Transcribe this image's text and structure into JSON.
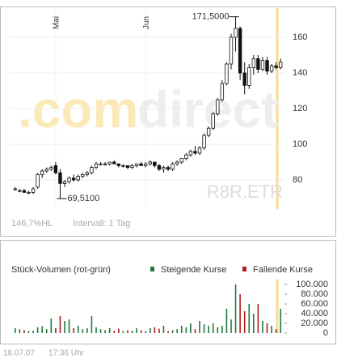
{
  "chart_data": [
    {
      "type": "candlestick",
      "categories": [
        null,
        null,
        null,
        null,
        null,
        null,
        null,
        null,
        null,
        "Mai",
        null,
        null,
        null,
        null,
        null,
        null,
        null,
        null,
        null,
        null,
        null,
        null,
        null,
        null,
        null,
        null,
        null,
        null,
        null,
        "Jun",
        null,
        null,
        null,
        null,
        null,
        null,
        null,
        null,
        null,
        null,
        null,
        null,
        null,
        null,
        null,
        null,
        null,
        null,
        null,
        null,
        null,
        null,
        null,
        null,
        null,
        null,
        null,
        null,
        null,
        null
      ],
      "open": [
        75,
        74,
        74,
        73,
        73,
        76,
        83,
        85,
        86,
        88,
        84,
        78,
        79,
        81,
        80,
        82,
        83,
        84,
        87,
        89,
        89,
        89,
        90,
        89,
        88,
        88,
        87,
        88,
        89,
        88,
        89,
        90,
        88,
        86,
        87,
        86,
        89,
        90,
        92,
        94,
        96,
        95,
        98,
        105,
        109,
        117,
        125,
        134,
        145,
        160,
        165,
        140,
        133,
        143,
        148,
        142,
        147,
        141,
        144,
        143
      ],
      "high": [
        76,
        75,
        75,
        74,
        76,
        84,
        86,
        87,
        88,
        90,
        86,
        80,
        82,
        83,
        83,
        84,
        85,
        88,
        90,
        90,
        90,
        90,
        91,
        89,
        89,
        88,
        89,
        89,
        90,
        90,
        91,
        90,
        89,
        88,
        88,
        90,
        91,
        92,
        95,
        97,
        99,
        99,
        106,
        110,
        118,
        126,
        136,
        146,
        162,
        171.5,
        166,
        146,
        145,
        150,
        150,
        149,
        149,
        145,
        146,
        148
      ],
      "low": [
        74,
        73,
        73,
        72,
        72,
        75,
        81,
        84,
        85,
        83,
        69.51,
        76,
        78,
        79,
        79,
        81,
        82,
        83,
        86,
        88,
        88,
        88,
        89,
        87,
        87,
        86,
        86,
        87,
        88,
        87,
        88,
        87,
        85,
        84,
        85,
        85,
        88,
        89,
        91,
        93,
        94,
        94,
        97,
        104,
        108,
        116,
        124,
        133,
        142,
        152,
        136,
        128,
        131,
        139,
        140,
        141,
        139,
        140,
        142,
        142
      ],
      "close": [
        75,
        74,
        73,
        73,
        75,
        83,
        85,
        86,
        87,
        84,
        78,
        79,
        81,
        80,
        82,
        83,
        84,
        87,
        89,
        89,
        89,
        90,
        89,
        88,
        88,
        87,
        88,
        89,
        88,
        89,
        90,
        88,
        86,
        87,
        86,
        89,
        90,
        92,
        94,
        96,
        95,
        98,
        105,
        109,
        117,
        125,
        134,
        145,
        160,
        165,
        140,
        133,
        143,
        148,
        142,
        147,
        141,
        144,
        143,
        146
      ],
      "ylim": [
        64,
        176
      ],
      "yticks": [
        80,
        100,
        120,
        140,
        160
      ],
      "grid": true,
      "annotations": [
        {
          "value": 171.5,
          "label": "171,5000"
        },
        {
          "value": 69.51,
          "label": "69,5100"
        }
      ],
      "watermark": [
        ".com",
        "direct"
      ],
      "symbol": "R8R.ETR",
      "range_info": "146,7%HL",
      "interval": "Intervall: 1 Tag"
    },
    {
      "type": "bar",
      "title": "Stück-Volumen (rot-grün)",
      "series": [
        {
          "name": "Steigende Kurse",
          "color": "#1e7a3c",
          "values": [
            10000,
            8000,
            null,
            4000,
            5000,
            12000,
            14000,
            8000,
            30000,
            null,
            null,
            25000,
            28000,
            null,
            15000,
            8000,
            10000,
            35000,
            12000,
            8000,
            6000,
            10000,
            null,
            null,
            4000,
            null,
            5000,
            10000,
            null,
            4000,
            10000,
            null,
            null,
            15000,
            null,
            6000,
            8000,
            15000,
            12000,
            20000,
            null,
            25000,
            18000,
            15000,
            20000,
            12000,
            15000,
            50000,
            28000,
            100000,
            null,
            null,
            60000,
            40000,
            null,
            25000,
            null,
            15000,
            null,
            50000
          ]
        },
        {
          "name": "Fallende Kurse",
          "color": "#b01c1c",
          "values": [
            null,
            null,
            6000,
            null,
            null,
            null,
            null,
            null,
            null,
            10000,
            35000,
            null,
            null,
            10000,
            null,
            null,
            null,
            null,
            null,
            null,
            null,
            null,
            5000,
            9000,
            null,
            6000,
            null,
            null,
            6000,
            null,
            null,
            12000,
            9000,
            null,
            4000,
            null,
            null,
            null,
            null,
            null,
            8000,
            null,
            null,
            null,
            null,
            null,
            null,
            null,
            null,
            null,
            80000,
            45000,
            null,
            null,
            60000,
            null,
            20000,
            null,
            8000,
            null
          ]
        }
      ],
      "ylim": [
        0,
        110000
      ],
      "yticks": [
        0,
        {
          "value": 20000,
          "label": "20.000"
        },
        {
          "value": 40000,
          "label": "40.000"
        },
        {
          "value": 60000,
          "label": "60.000"
        },
        {
          "value": 80000,
          "label": "80.000"
        },
        {
          "value": 100000,
          "label": "100.000"
        }
      ]
    }
  ],
  "footer": {
    "date": "18.07.07",
    "time": "17:36 Uhr"
  }
}
